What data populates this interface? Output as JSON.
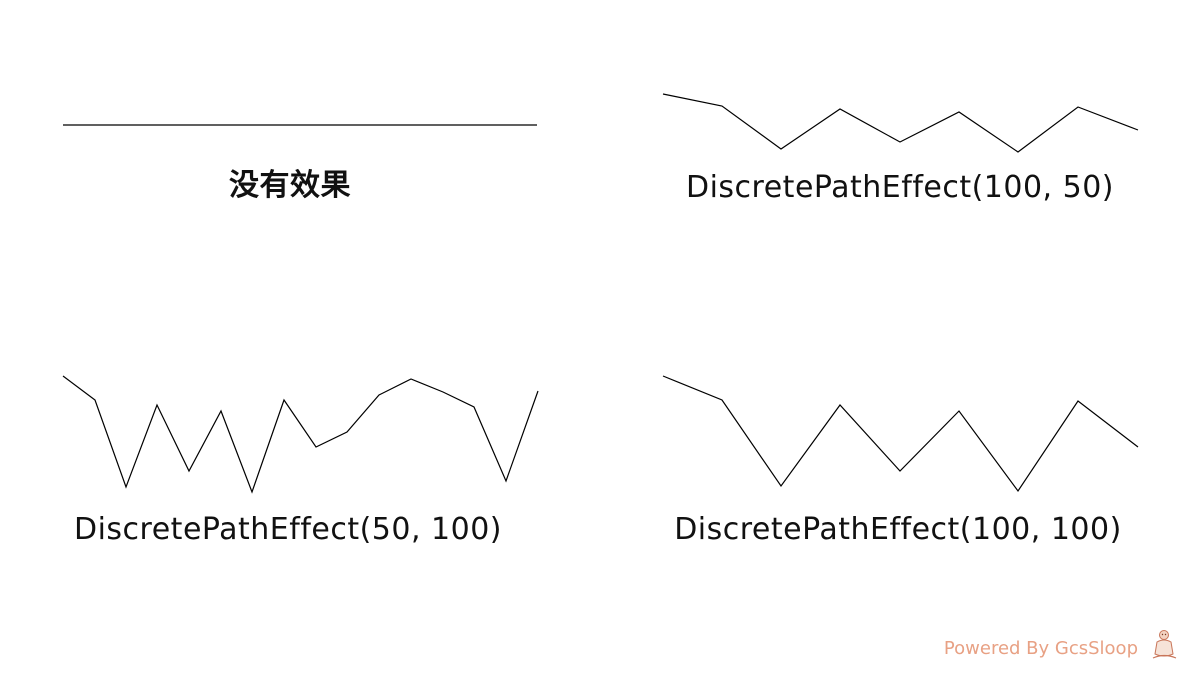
{
  "panels": [
    {
      "title": "没有效果",
      "points": [
        [
          63,
          125
        ],
        [
          537,
          125
        ]
      ]
    },
    {
      "title": "DiscretePathEffect(100, 50)",
      "points": [
        [
          663,
          94
        ],
        [
          722,
          106
        ],
        [
          781,
          149
        ],
        [
          840,
          109
        ],
        [
          900,
          142
        ],
        [
          959,
          112
        ],
        [
          1018,
          152
        ],
        [
          1078,
          107
        ],
        [
          1138,
          130
        ]
      ]
    },
    {
      "title": "DiscretePathEffect(50, 100)",
      "points": [
        [
          63,
          376
        ],
        [
          95,
          400
        ],
        [
          126,
          487
        ],
        [
          157,
          405
        ],
        [
          189,
          471
        ],
        [
          221,
          411
        ],
        [
          252,
          492
        ],
        [
          284,
          400
        ],
        [
          316,
          447
        ],
        [
          347,
          432
        ],
        [
          379,
          395
        ],
        [
          411,
          379
        ],
        [
          443,
          392
        ],
        [
          474,
          407
        ],
        [
          506,
          481
        ],
        [
          538,
          391
        ]
      ]
    },
    {
      "title": "DiscretePathEffect(100, 100)",
      "points": [
        [
          663,
          376
        ],
        [
          722,
          400
        ],
        [
          781,
          486
        ],
        [
          840,
          405
        ],
        [
          900,
          471
        ],
        [
          959,
          411
        ],
        [
          1018,
          491
        ],
        [
          1078,
          401
        ],
        [
          1138,
          447
        ]
      ]
    }
  ],
  "footer": {
    "text": "Powered By GcsSloop",
    "color": "#e8a184"
  },
  "colors": {
    "stroke": "#000000",
    "background": "#ffffff"
  }
}
